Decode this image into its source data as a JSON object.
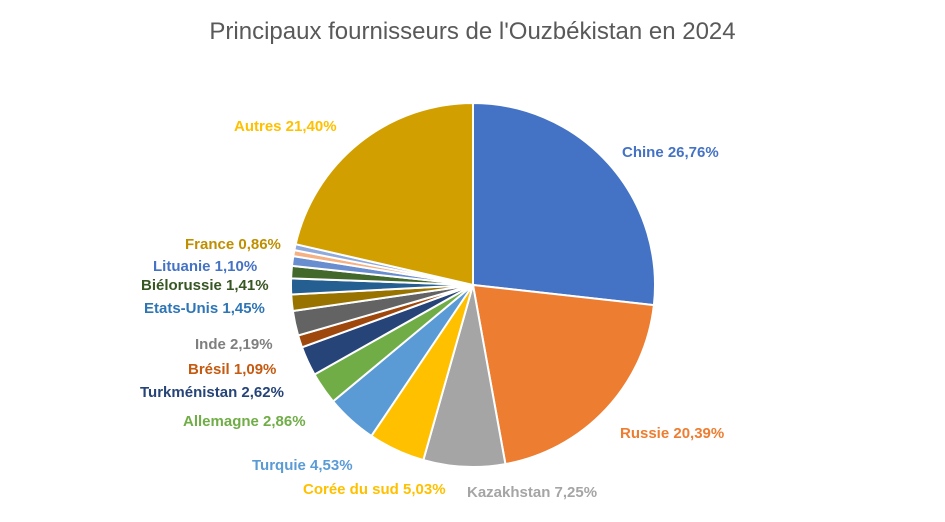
{
  "chart_data": {
    "type": "pie",
    "title": "Principaux fournisseurs de l'Ouzbékistan en 2024",
    "slices": [
      {
        "name": "Chine",
        "label": "Chine 26,76%",
        "value": 26.76,
        "color": "#4472C4"
      },
      {
        "name": "Russie",
        "label": "Russie 20,39%",
        "value": 20.39,
        "color": "#ED7D31"
      },
      {
        "name": "Kazakhstan",
        "label": "Kazakhstan 7,25%",
        "value": 7.25,
        "color": "#A5A5A5"
      },
      {
        "name": "Corée du sud",
        "label": "Corée du sud 5,03%",
        "value": 5.03,
        "color": "#FFC000"
      },
      {
        "name": "Turquie",
        "label": "Turquie 4,53%",
        "value": 4.53,
        "color": "#5B9BD5"
      },
      {
        "name": "Allemagne",
        "label": "Allemagne 2,86%",
        "value": 2.86,
        "color": "#70AD47"
      },
      {
        "name": "Turkménistan",
        "label": "Turkménistan 2,62%",
        "value": 2.62,
        "color": "#264478"
      },
      {
        "name": "Brésil",
        "label": "Brésil 1,09%",
        "value": 1.09,
        "color": "#9E480E"
      },
      {
        "name": "Inde",
        "label": "Inde 2,19%",
        "value": 2.19,
        "color": "#636363"
      },
      {
        "name": "Etats-Unis",
        "label": "Etats-Unis 1,45%",
        "value": 1.45,
        "color": "#997300"
      },
      {
        "name": "Biélorussie",
        "label": "Biélorussie 1,41%",
        "value": 1.41,
        "color": "#255E91"
      },
      {
        "name": "Lituanie",
        "label": "Lituanie 1,10%",
        "value": 1.1,
        "color": "#43682B"
      },
      {
        "name": "France",
        "label": "France 0,86%",
        "value": 0.86,
        "color": "#698ED0"
      },
      {
        "name": "Autres",
        "label": "Autres 21,40%",
        "value": 21.4,
        "color": "#D29F00"
      }
    ],
    "label_colors": {
      "Chine": "#4472C4",
      "Russie": "#ED7D31",
      "Kazakhstan": "#A5A5A5",
      "Corée du sud": "#FFC000",
      "Turquie": "#5B9BD5",
      "Allemagne": "#70AD47",
      "Turkménistan": "#264478",
      "Brésil": "#C55A11",
      "Inde": "#7F7F7F",
      "Etats-Unis": "#2E75B6",
      "Biélorussie": "#375623",
      "Lituanie": "#4472C4",
      "France": "#BF8F00",
      "Autres": "#FFC000"
    },
    "extra_slice_colors": [
      "#F4B183",
      "#8FAADC"
    ],
    "legend": "none",
    "data_labels": "outside"
  }
}
